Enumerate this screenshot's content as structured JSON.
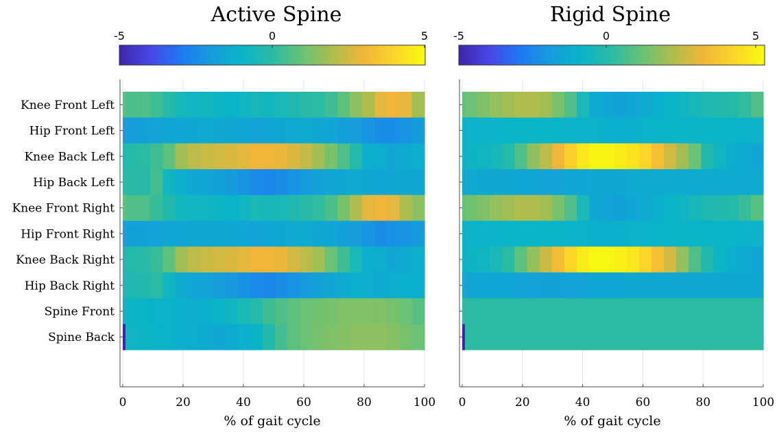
{
  "chart_data": [
    {
      "type": "heatmap",
      "title": "Active Spine",
      "xlabel": "% of gait cycle",
      "ylabel": "",
      "xlim": [
        0,
        100
      ],
      "x_ticks": [
        "0",
        "20",
        "40",
        "60",
        "80",
        "100"
      ],
      "x_tick_values": [
        0,
        20,
        40,
        60,
        80,
        100
      ],
      "grid": "vertical",
      "colorbar": {
        "position": "top",
        "colormap": "parula",
        "range": [
          -5,
          5
        ],
        "tick_labels": [
          "-5",
          "0",
          "5"
        ],
        "tick_values": [
          -5,
          0,
          5
        ]
      },
      "rows": [
        {
          "name": "Knee Front Left",
          "values": [
            0.8,
            0.5,
            0.6,
            0.3,
            -0.2,
            -0.6,
            -0.8,
            -0.7,
            -0.9,
            -1.0,
            -0.8,
            -0.6,
            -0.7,
            -0.5,
            -0.3,
            -0.1,
            0.0,
            0.3,
            0.8,
            1.5,
            2.0,
            2.8,
            3.0,
            2.8,
            1.8
          ]
        },
        {
          "name": "Hip Front Left",
          "values": [
            -1.8,
            -1.9,
            -1.8,
            -1.7,
            -1.6,
            -1.6,
            -1.5,
            -1.4,
            -1.5,
            -1.5,
            -1.6,
            -1.7,
            -1.6,
            -1.5,
            -1.4,
            -1.4,
            -1.5,
            -1.6,
            -1.8,
            -1.9,
            -2.2,
            -2.4,
            -2.4,
            -2.2,
            -2.0
          ]
        },
        {
          "name": "Knee Back Left",
          "values": [
            -0.3,
            -0.2,
            0.0,
            0.3,
            0.8,
            1.8,
            2.2,
            2.4,
            2.5,
            2.6,
            2.8,
            3.0,
            3.0,
            2.9,
            2.6,
            2.3,
            1.8,
            1.2,
            0.6,
            -0.2,
            -1.2,
            -1.3,
            -1.5,
            -1.4,
            -1.2
          ]
        },
        {
          "name": "Hip Back Left",
          "values": [
            0.0,
            -0.1,
            -0.1,
            0.4,
            -0.8,
            -1.3,
            -1.5,
            -1.6,
            -1.8,
            -2.0,
            -2.2,
            -2.5,
            -2.6,
            -2.4,
            -2.2,
            -2.0,
            -1.8,
            -1.6,
            -1.5,
            -1.4,
            -1.5,
            -1.6,
            -1.5,
            -1.5,
            -1.5
          ]
        },
        {
          "name": "Knee Front Right",
          "values": [
            0.9,
            0.6,
            0.6,
            0.2,
            -0.3,
            -0.7,
            -0.8,
            -0.8,
            -0.9,
            -1.0,
            -0.8,
            -0.5,
            -0.6,
            -0.5,
            -0.3,
            -0.1,
            0.1,
            0.5,
            1.2,
            2.0,
            2.8,
            3.0,
            2.8,
            2.0,
            1.5
          ]
        },
        {
          "name": "Hip Front Right",
          "values": [
            -1.7,
            -1.8,
            -1.8,
            -1.7,
            -1.6,
            -1.6,
            -1.5,
            -1.5,
            -1.5,
            -1.5,
            -1.6,
            -1.7,
            -1.6,
            -1.5,
            -1.4,
            -1.4,
            -1.5,
            -1.6,
            -1.8,
            -1.9,
            -2.2,
            -2.4,
            -2.3,
            -2.2,
            -2.0
          ]
        },
        {
          "name": "Knee Back Right",
          "values": [
            -0.4,
            -0.2,
            -0.1,
            0.2,
            0.8,
            1.8,
            2.2,
            2.4,
            2.5,
            2.6,
            2.8,
            3.0,
            3.0,
            2.9,
            2.5,
            2.2,
            1.8,
            1.0,
            0.3,
            -0.5,
            -1.2,
            -1.3,
            -1.5,
            -1.4,
            -1.2
          ]
        },
        {
          "name": "Hip Back Right",
          "values": [
            -0.5,
            -0.4,
            -0.3,
            0.0,
            -0.8,
            -1.4,
            -1.6,
            -1.7,
            -1.9,
            -2.1,
            -2.3,
            -2.5,
            -2.6,
            -2.4,
            -2.2,
            -2.0,
            -1.8,
            -1.6,
            -1.4,
            -1.2,
            -1.3,
            -1.4,
            -1.3,
            -1.2,
            -1.2
          ]
        },
        {
          "name": "Spine Front",
          "values": [
            -0.8,
            -0.9,
            -1.0,
            -1.1,
            -1.1,
            -1.2,
            -1.3,
            -1.2,
            -1.0,
            -0.8,
            -0.5,
            -0.2,
            0.3,
            0.6,
            0.8,
            1.0,
            1.1,
            1.2,
            1.3,
            1.3,
            1.3,
            1.3,
            1.2,
            1.0,
            0.7
          ]
        },
        {
          "name": "Spine Back",
          "values": [
            -5.0,
            -0.8,
            -0.9,
            -1.0,
            -1.1,
            -1.2,
            -1.3,
            -1.4,
            -1.5,
            -1.4,
            -1.2,
            -1.0,
            -0.3,
            0.4,
            0.8,
            1.0,
            1.2,
            1.3,
            1.4,
            1.5,
            1.5,
            1.5,
            1.4,
            1.2,
            1.0
          ]
        }
      ]
    },
    {
      "type": "heatmap",
      "title": "Rigid Spine",
      "xlabel": "% of gait cycle",
      "ylabel": "",
      "xlim": [
        0,
        100
      ],
      "x_ticks": [
        "0",
        "20",
        "40",
        "60",
        "80",
        "100"
      ],
      "x_tick_values": [
        0,
        20,
        40,
        60,
        80,
        100
      ],
      "grid": "vertical",
      "colorbar": {
        "position": "top",
        "colormap": "parula",
        "range": [
          -5,
          5
        ],
        "tick_labels": [
          "-5",
          "0",
          "5"
        ],
        "tick_values": [
          -5,
          0,
          5
        ]
      },
      "rows": [
        {
          "name": "Knee Front Left",
          "values": [
            0.9,
            1.0,
            1.3,
            1.6,
            1.8,
            2.0,
            2.0,
            1.8,
            1.2,
            0.6,
            -0.5,
            -1.4,
            -1.6,
            -1.8,
            -1.6,
            -1.4,
            -1.2,
            -1.0,
            -0.8,
            -0.6,
            -0.4,
            -0.3,
            -0.2,
            0.1,
            0.6
          ]
        },
        {
          "name": "Hip Front Left",
          "values": [
            -1.0,
            -1.1,
            -1.1,
            -1.1,
            -1.0,
            -1.0,
            -1.0,
            -1.0,
            -1.0,
            -1.1,
            -1.1,
            -1.1,
            -1.2,
            -1.2,
            -1.2,
            -1.1,
            -1.0,
            -1.0,
            -1.0,
            -1.0,
            -1.0,
            -1.0,
            -1.0,
            -1.1,
            -1.1
          ]
        },
        {
          "name": "Knee Back Left",
          "values": [
            -1.0,
            -0.9,
            -0.8,
            -0.6,
            -0.2,
            0.6,
            1.5,
            2.2,
            3.0,
            3.8,
            4.5,
            4.8,
            4.8,
            4.6,
            4.4,
            4.0,
            3.3,
            2.5,
            1.8,
            1.0,
            -0.3,
            -0.8,
            -1.3,
            -1.4,
            -1.6
          ]
        },
        {
          "name": "Hip Back Left",
          "values": [
            -1.4,
            -1.4,
            -1.5,
            -1.5,
            -1.5,
            -1.6,
            -1.6,
            -1.7,
            -1.7,
            -1.6,
            -1.6,
            -1.5,
            -1.5,
            -1.5,
            -1.4,
            -1.4,
            -1.4,
            -1.4,
            -1.4,
            -1.4,
            -1.4,
            -1.4,
            -1.4,
            -1.4,
            -1.4
          ]
        },
        {
          "name": "Knee Front Right",
          "values": [
            0.9,
            1.1,
            1.3,
            1.6,
            1.8,
            2.0,
            2.0,
            1.8,
            1.2,
            0.6,
            -0.5,
            -1.5,
            -1.7,
            -1.8,
            -1.6,
            -1.4,
            -1.2,
            -1.0,
            -0.8,
            -0.6,
            -0.4,
            -0.3,
            -0.2,
            0.2,
            0.7
          ]
        },
        {
          "name": "Hip Front Right",
          "values": [
            -1.0,
            -1.1,
            -1.1,
            -1.1,
            -1.0,
            -1.0,
            -1.0,
            -1.0,
            -1.0,
            -1.1,
            -1.1,
            -1.2,
            -1.2,
            -1.2,
            -1.1,
            -1.1,
            -1.0,
            -1.0,
            -1.0,
            -1.0,
            -1.0,
            -1.0,
            -1.0,
            -1.1,
            -1.1
          ]
        },
        {
          "name": "Knee Back Right",
          "values": [
            -1.0,
            -0.9,
            -0.8,
            -0.5,
            0.0,
            0.8,
            1.6,
            2.4,
            3.2,
            4.0,
            4.6,
            4.9,
            4.9,
            4.7,
            4.5,
            4.0,
            3.3,
            2.5,
            1.6,
            0.6,
            -0.3,
            -0.9,
            -1.3,
            -1.4,
            -1.6
          ]
        },
        {
          "name": "Hip Back Right",
          "values": [
            -1.5,
            -1.5,
            -1.6,
            -1.6,
            -1.6,
            -1.7,
            -1.7,
            -1.8,
            -1.8,
            -1.7,
            -1.7,
            -1.6,
            -1.6,
            -1.6,
            -1.5,
            -1.5,
            -1.5,
            -1.5,
            -1.5,
            -1.5,
            -1.5,
            -1.5,
            -1.5,
            -1.5,
            -1.5
          ]
        },
        {
          "name": "Spine Front",
          "values": [
            0.0,
            0.0,
            0.0,
            0.0,
            0.0,
            0.0,
            0.0,
            0.0,
            0.0,
            0.0,
            0.0,
            0.0,
            0.0,
            0.0,
            0.0,
            0.0,
            0.0,
            0.0,
            0.0,
            0.0,
            0.0,
            0.0,
            0.0,
            0.0,
            0.0
          ]
        },
        {
          "name": "Spine Back",
          "values": [
            -5.0,
            0.0,
            0.0,
            0.0,
            0.0,
            0.0,
            0.0,
            0.0,
            0.0,
            0.0,
            0.0,
            0.0,
            0.0,
            0.0,
            0.0,
            0.0,
            0.0,
            0.0,
            0.0,
            0.0,
            0.0,
            0.0,
            0.0,
            0.0,
            0.0
          ]
        }
      ]
    }
  ]
}
